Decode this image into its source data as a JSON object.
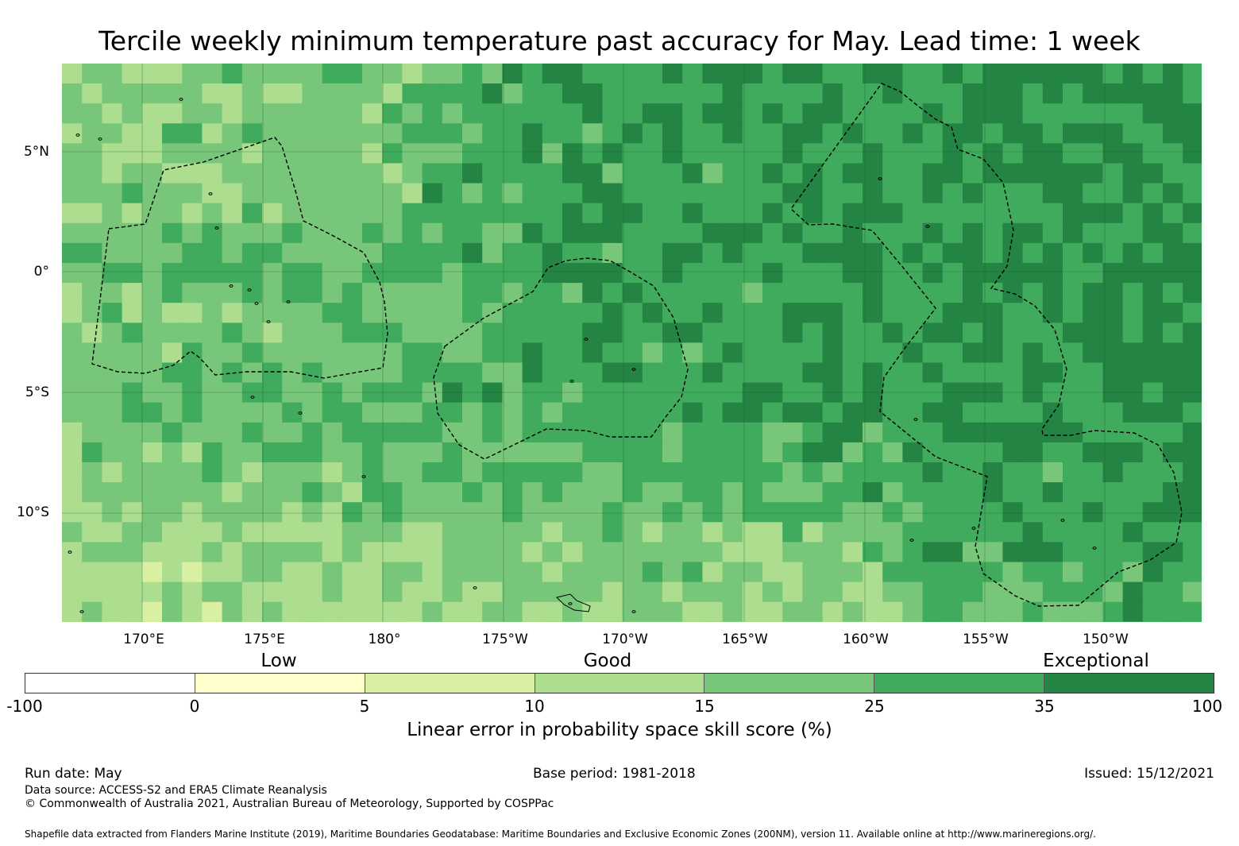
{
  "title": "Tercile weekly minimum temperature past accuracy for May. Lead time: 1 week",
  "map": {
    "lat_labels": [
      "5°N",
      "0°",
      "5°S",
      "10°S"
    ],
    "lon_labels": [
      "170°E",
      "175°E",
      "180°",
      "175°W",
      "170°W",
      "165°W",
      "160°W",
      "155°W",
      "150°W"
    ],
    "extent": {
      "lon": [
        166.6,
        213.9
      ],
      "lat": [
        -14.6,
        8.7
      ]
    }
  },
  "colorbar": {
    "categories": [
      "Low",
      "Good",
      "Exceptional"
    ],
    "bounds": [
      "-100",
      "0",
      "5",
      "10",
      "15",
      "25",
      "35",
      "100"
    ],
    "colors": [
      "#ffffff",
      "#ffffcc",
      "#d9f0a3",
      "#addd8e",
      "#78c679",
      "#41ab5d",
      "#238443"
    ],
    "label": "Linear error in probability space skill score (%)"
  },
  "footer": {
    "run_date": "Run date: May",
    "base_period": "Base period: 1981-2018",
    "issued": "Issued: 15/12/2021",
    "data_source": "Data source: ACCESS-S2 and ERA5 Climate Reanalysis",
    "copyright": "© Commonwealth of Australia 2021, Australian Bureau of Meteorology, Supported by COSPPac",
    "shapefile": "Shapefile data extracted from Flanders Marine Institute (2019), Maritime Boundaries Geodatabase: Maritime Boundaries and Exclusive Economic Zones (200NM), version 11. Available online at http://www.marineregions.org/."
  }
}
